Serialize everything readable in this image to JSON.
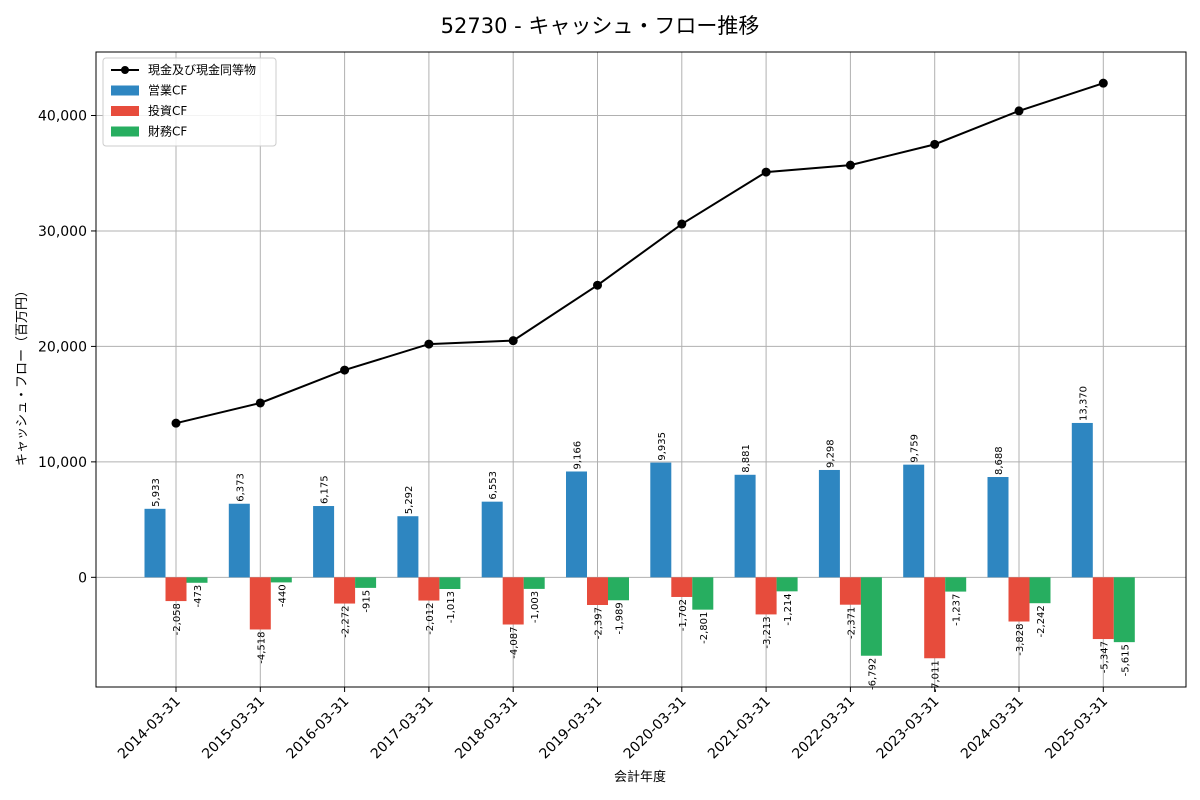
{
  "chart_data": {
    "type": "bar",
    "title": "52730 - キャッシュ・フロー推移",
    "xlabel": "会計年度",
    "ylabel": "キャッシュ・フロー（百万円）",
    "categories": [
      "2014-03-31",
      "2015-03-31",
      "2016-03-31",
      "2017-03-31",
      "2018-03-31",
      "2019-03-31",
      "2020-03-31",
      "2021-03-31",
      "2022-03-31",
      "2023-03-31",
      "2024-03-31",
      "2025-03-31"
    ],
    "ylim": [
      -9500,
      45500
    ],
    "yticks": [
      0,
      10000,
      20000,
      30000,
      40000
    ],
    "ytick_labels": [
      "0",
      "10,000",
      "20,000",
      "30,000",
      "40,000"
    ],
    "grid": true,
    "legend_position": "upper left",
    "line_series": {
      "name": "現金及び現金同等物",
      "color": "#000000",
      "values": [
        13350,
        15100,
        17950,
        20200,
        20500,
        25300,
        30600,
        35100,
        35700,
        37500,
        40400,
        42800
      ]
    },
    "series": [
      {
        "name": "営業CF",
        "color": "#2e86c1",
        "values": [
          5933,
          6373,
          6175,
          5292,
          6553,
          9166,
          9935,
          8881,
          9298,
          9759,
          8688,
          13370
        ],
        "labels": [
          "5,933",
          "6,373",
          "6,175",
          "5,292",
          "6,553",
          "9,166",
          "9,935",
          "8,881",
          "9,298",
          "9,759",
          "8,688",
          "13,370"
        ]
      },
      {
        "name": "投資CF",
        "color": "#e74c3c",
        "values": [
          -2058,
          -4518,
          -2272,
          -2012,
          -4087,
          -2397,
          -1702,
          -3213,
          -2371,
          -7011,
          -3828,
          -5347
        ],
        "labels": [
          "-2,058",
          "-4,518",
          "-2,272",
          "-2,012",
          "-4,087",
          "-2,397",
          "-1,702",
          "-3,213",
          "-2,371",
          "-7,011",
          "-3,828",
          "-5,347"
        ]
      },
      {
        "name": "財務CF",
        "color": "#27ae60",
        "values": [
          -473,
          -440,
          -915,
          -1013,
          -1003,
          -1989,
          -2801,
          -1214,
          -6792,
          -1237,
          -2242,
          -5615
        ],
        "labels": [
          "-473",
          "-440",
          "-915",
          "-1,013",
          "-1,003",
          "-1,989",
          "-2,801",
          "-1,214",
          "-6,792",
          "-1,237",
          "-2,242",
          "-5,615"
        ]
      }
    ]
  }
}
